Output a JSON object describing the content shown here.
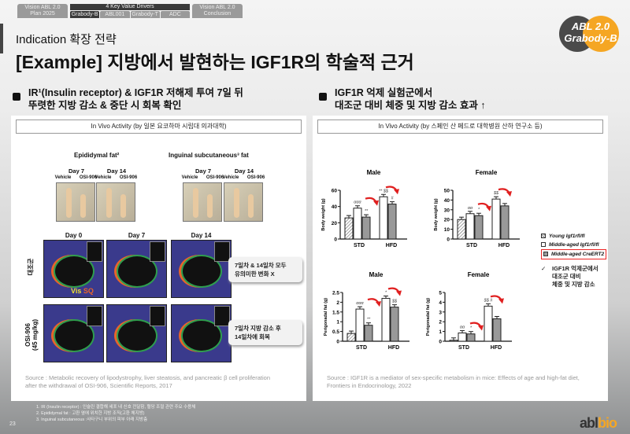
{
  "nav": {
    "tab1": [
      "Vision ABL 2.0",
      "Plan 2025"
    ],
    "mid_title": "4 Key Value Drivers",
    "subs": [
      "Grabody-B",
      "ABL001",
      "Grabody-T",
      "ADC"
    ],
    "active": "Grabody-B",
    "tab3": [
      "Vision ABL 2.0",
      "Conclusion"
    ]
  },
  "header": {
    "subtitle": "Indication 확장 전략",
    "title": "[Example] 지방에서 발현하는 IGF1R의 학술적 근거",
    "badge": [
      "ABL 2.0",
      "Grabody-B"
    ]
  },
  "left": {
    "bullet": [
      "IR¹(Insulin receptor) & IGF1R 저해제 투여 7일 뒤",
      "뚜렷한 지방 감소 & 중단 시 회복 확인"
    ],
    "panel_title": "In Vivo Activity (by 일본 요코하마 시립대 의과대학)",
    "fat_headers": [
      "Epididymal fat²",
      "Inguinal subcutaneous³ fat"
    ],
    "day_labels": [
      "Day 7",
      "Day 14"
    ],
    "group_labels": [
      "Vehicle",
      "OSI-906"
    ],
    "mri_days": [
      "Day 0",
      "Day 7",
      "Day 14"
    ],
    "mri_rows": [
      "대조군",
      "OSI-906\n(45 mg/kg)"
    ],
    "mri_legend": [
      "Vis",
      "SQ"
    ],
    "callouts": [
      "7일차 & 14일차 모두\n유의미한 변화 X",
      "7일차 지방 감소 후\n14일차에 회복"
    ],
    "source": [
      "Source : Metabolic recovery of lipodystrophy, liver steatosis, and pancreatic β cell proliferation",
      "after the withdrawal of OSI-906, Scientific Reports, 2017"
    ]
  },
  "right": {
    "bullet": [
      "IGF1R 억제 실험군에서",
      "대조군 대비 체중 및 지방 감소 효과 ↑"
    ],
    "panel_title": "In Vivo Activity (by 스페인 산 페드로 대학병원 산하 연구소 등)",
    "legend": [
      "Young Igf1rfl/fl",
      "Middle-aged Igf1rfl/fl",
      "Middle-aged CreERT2"
    ],
    "conclusion": "IGF1R 억제군에서\n대조군 대비\n체중 및 지방 감소",
    "source": [
      "Source : IGF1R is a mediator of sex-specific metabolism in mice: Effects of age and high-fat diet,",
      "Frontiers in Endocrinology, 2022"
    ]
  },
  "chart_data": [
    {
      "type": "bar",
      "title": "Male",
      "ylabel": "Body weight (g)",
      "ylim": [
        0,
        60
      ],
      "yticks": [
        0,
        20,
        40,
        60
      ],
      "categories": [
        "STD",
        "HFD"
      ],
      "series": [
        {
          "name": "Young Igf1rfl/fl",
          "values": [
            26,
            null
          ]
        },
        {
          "name": "Middle-aged Igf1rfl/fl",
          "values": [
            38,
            52
          ]
        },
        {
          "name": "Middle-aged CreERT2",
          "values": [
            27,
            43
          ]
        }
      ],
      "annotations": [
        "ααα",
        "**",
        "**\n$$",
        "#"
      ]
    },
    {
      "type": "bar",
      "title": "Female",
      "ylabel": "Body weight (g)",
      "ylim": [
        0,
        50
      ],
      "yticks": [
        0,
        10,
        20,
        30,
        40,
        50
      ],
      "categories": [
        "STD",
        "HFD"
      ],
      "series": [
        {
          "name": "Young Igf1rfl/fl",
          "values": [
            20,
            null
          ]
        },
        {
          "name": "Middle-aged Igf1rfl/fl",
          "values": [
            26,
            41
          ]
        },
        {
          "name": "Middle-aged CreERT2",
          "values": [
            24,
            34
          ]
        }
      ],
      "annotations": [
        "αα",
        "*",
        "$$"
      ]
    },
    {
      "type": "bar",
      "title": "Male",
      "ylabel": "Perigonadal fat (g)",
      "ylim": [
        0,
        2.5
      ],
      "yticks": [
        0,
        0.5,
        1.0,
        1.5,
        2.0,
        2.5
      ],
      "categories": [
        "STD",
        "HFD"
      ],
      "series": [
        {
          "name": "Young Igf1rfl/fl",
          "values": [
            0.4,
            null
          ]
        },
        {
          "name": "Middle-aged Igf1rfl/fl",
          "values": [
            1.65,
            2.2
          ]
        },
        {
          "name": "Middle-aged CreERT2",
          "values": [
            0.82,
            1.75
          ]
        }
      ],
      "annotations": [
        "ααα",
        "**",
        "*",
        "$$"
      ]
    },
    {
      "type": "bar",
      "title": "Female",
      "ylabel": "Perigonadal fat (g)",
      "ylim": [
        0,
        5
      ],
      "yticks": [
        0,
        1,
        2,
        3,
        4,
        5
      ],
      "categories": [
        "STD",
        "HFD"
      ],
      "series": [
        {
          "name": "Young Igf1rfl/fl",
          "values": [
            0.1,
            null
          ]
        },
        {
          "name": "Middle-aged Igf1rfl/fl",
          "values": [
            0.85,
            3.6
          ]
        },
        {
          "name": "Middle-aged CreERT2",
          "values": [
            0.75,
            2.3
          ]
        }
      ],
      "annotations": [
        "αα",
        "*",
        "$$\n#"
      ]
    }
  ],
  "footnotes": [
    "1. IR (Insulin receptor) : 인슐린 결합해 세포 내 신호 전달함, 혈당 조절 관련 주요 수용체",
    "2. Epididymal fat : 고환 옆에 위치한 지방 조직(고환 체지방)",
    "3. Inguinal subcutaneous :사타구니 부위의 피부 아래 지방층"
  ],
  "page_number": "23",
  "logo": [
    "abl",
    "bio"
  ],
  "colors": {
    "accent": "#f5a623",
    "dark": "#3a3a3a",
    "arrow": "#e02020",
    "highlight": "#e22222"
  }
}
